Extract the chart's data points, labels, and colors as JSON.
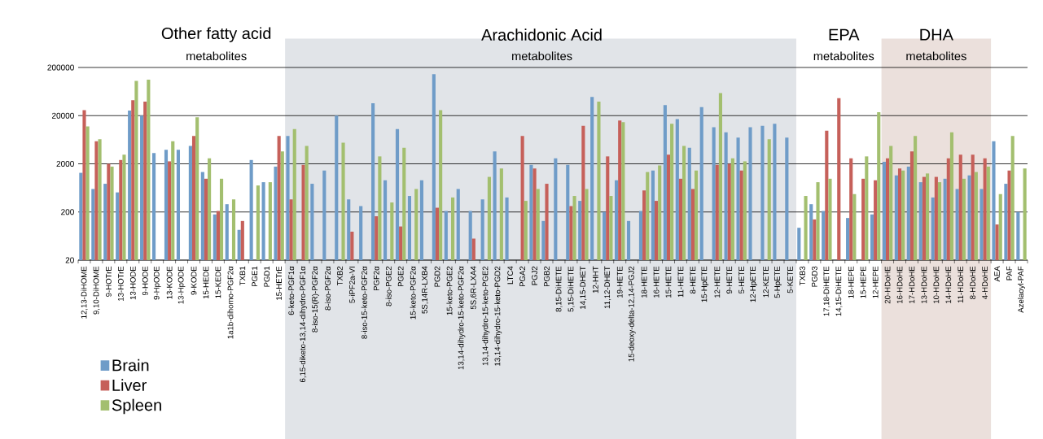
{
  "chart_data": {
    "type": "bar",
    "log": true,
    "grid": "y",
    "legend": "bottom left",
    "categories": [
      "12,13-DiHOME",
      "9,10-DiHOME",
      "9-HOTrE",
      "13-HOTrE",
      "13-HODE",
      "9-HODE",
      "9-HpODE",
      "13-KODE",
      "13-HpODE",
      "9-KODE",
      "15-HEDE",
      "15-KEDE",
      "1a1b-dihomo-PGF2α",
      "TXB1",
      "PGE1",
      "PGD1",
      "15-HETrE",
      "6-keto-PGF1α",
      "6,15-diketo-13,14-dihydro-PGF1α",
      "8-iso-15(R)-PGF2α",
      "8-iso-PGF2α",
      "TXB2",
      "5-iPF2a-VI",
      "8-iso-15-keto-PGF2α",
      "PGF2α",
      "8-iso-PGE2",
      "PGE2",
      "15-keto-PGF2α",
      "5S,14R-LXB4",
      "PGD2",
      "15-keto-PGE2",
      "13,14-dihydro-15-keto-PGF2α",
      "5S,6R-LXA4",
      "13,14-dihydro-15-keto-PGE2",
      "13,14-dihydro-15-keto-PGD2",
      "LTC4",
      "PGA2",
      "PGJ2",
      "PGB2",
      "8,15-DiHETE",
      "5,15-DiHETE",
      "14,15-DHET",
      "12-HHT",
      "11,12-DHET",
      "19-HETE",
      "15-deoxy-delta-12,14-PGJ2",
      "18-HETE",
      "16-HETE",
      "15-HETE",
      "11-HETE",
      "8-HETE",
      "15-HpETE",
      "12-HETE",
      "9-HETE",
      "5-HETE",
      "12-HpETE",
      "12-KETE",
      "5-HpETE",
      "5-KETE",
      "TXB3",
      "PGD3",
      "17,18-DiHETE",
      "14,15-DiHETE",
      "18-HEPE",
      "15-HEPE",
      "12-HEPE",
      "20-HDoHE",
      "16-HDoHE",
      "17-HDoHE",
      "13-HDoHE",
      "10-HDoHE",
      "14-HDoHE",
      "11-HDoHE",
      "8-HDoHE",
      "4-HDoHE",
      "AEA",
      "PAF",
      "Azelaoyl-PAF"
    ],
    "series": [
      {
        "name": "Brain",
        "color": "#6f9cc8",
        "values": [
          1300,
          600,
          770,
          510,
          25500,
          20000,
          3350,
          3900,
          3900,
          4700,
          1350,
          178,
          290,
          85,
          2400,
          830,
          1750,
          7600,
          null,
          770,
          1450,
          20000,
          365,
          265,
          36000,
          910,
          10500,
          430,
          910,
          145000,
          210,
          600,
          210,
          365,
          3600,
          400,
          null,
          1900,
          130,
          2600,
          1900,
          340,
          49000,
          200,
          910,
          130,
          210,
          1450,
          33000,
          17000,
          4300,
          30000,
          11500,
          9000,
          7000,
          11500,
          12300,
          13500,
          7000,
          94,
          290,
          210,
          null,
          150,
          null,
          178,
          2200,
          1150,
          1750,
          830,
          400,
          980,
          600,
          1150,
          600,
          5900,
          770,
          200
        ]
      },
      {
        "name": "Liver",
        "color": "#c6605a",
        "values": [
          26000,
          5900,
          2000,
          2400,
          42000,
          39000,
          null,
          2250,
          null,
          7600,
          980,
          210,
          null,
          130,
          null,
          null,
          7600,
          365,
          1900,
          null,
          null,
          null,
          78,
          null,
          163,
          null,
          100,
          null,
          null,
          245,
          null,
          null,
          56,
          null,
          null,
          null,
          7600,
          1600,
          770,
          null,
          265,
          12300,
          null,
          2850,
          15800,
          null,
          560,
          340,
          3100,
          980,
          600,
          null,
          1900,
          2000,
          1450,
          null,
          null,
          null,
          null,
          null,
          140,
          9700,
          46000,
          2600,
          980,
          910,
          2600,
          1600,
          3600,
          1070,
          1070,
          2600,
          3100,
          3100,
          2600,
          110,
          1450,
          null
        ]
      },
      {
        "name": "Spleen",
        "color": "#a3bf6f",
        "values": [
          12000,
          6500,
          1750,
          3100,
          105000,
          112000,
          null,
          5900,
          null,
          18500,
          2600,
          980,
          365,
          null,
          710,
          830,
          3600,
          10500,
          4700,
          null,
          null,
          5500,
          null,
          null,
          2850,
          315,
          4300,
          600,
          null,
          26000,
          400,
          null,
          null,
          1070,
          1600,
          null,
          340,
          600,
          null,
          null,
          430,
          600,
          39000,
          430,
          14700,
          null,
          1350,
          1850,
          13500,
          4700,
          1450,
          null,
          59000,
          2600,
          2250,
          null,
          6500,
          null,
          null,
          430,
          830,
          980,
          null,
          470,
          2850,
          23500,
          4700,
          1450,
          7600,
          1260,
          830,
          9000,
          980,
          1350,
          1750,
          470,
          7600,
          1600
        ]
      }
    ],
    "ylim": [
      20,
      200000
    ],
    "yticks": [
      20,
      200,
      2000,
      20000,
      200000
    ],
    "bands": [
      {
        "axis": "x",
        "from": "6-keto-PGF1α",
        "to": "5-KETE",
        "color": "#e1e4e8"
      },
      {
        "axis": "x",
        "from": "20-HDoHE",
        "to": "4-HDoHE",
        "color": "#ebe0dc"
      }
    ],
    "annotations": [
      "Other fatty acid",
      "metabolites",
      "Arachidonic Acid",
      "metabolites",
      "EPA",
      "metabolites",
      "DHA",
      "metabolites"
    ]
  }
}
